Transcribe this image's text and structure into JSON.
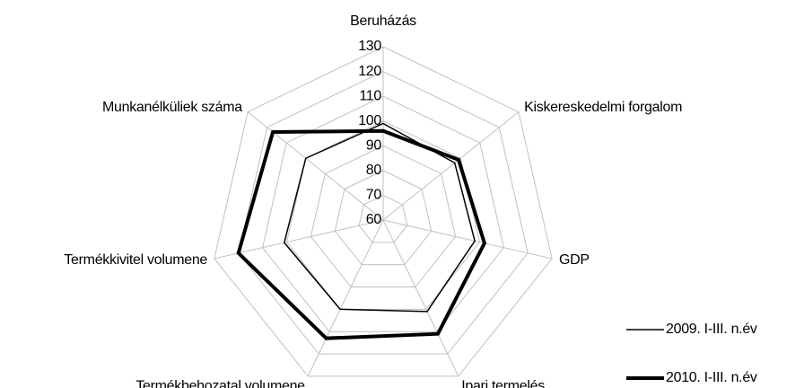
{
  "chart_data": {
    "type": "radar",
    "categories": [
      "Beruházás",
      "Kiskereskedelmi forgalom",
      "GDP",
      "Ipari termelés",
      "Termékbehozatal volumene",
      "Termékkivitel volumene",
      "Munkanélküliek száma"
    ],
    "series": [
      {
        "name": "2009. I-III. n.év",
        "color": "#000000",
        "width": 1.5,
        "values": [
          99,
          97,
          98,
          101,
          100,
          101,
          100
        ]
      },
      {
        "name": "2010. I-III. n.év",
        "color": "#000000",
        "width": 4,
        "values": [
          96,
          99,
          102,
          111,
          113,
          120,
          117
        ]
      }
    ],
    "ylim": [
      60,
      130
    ],
    "yticks": [
      60,
      70,
      80,
      90,
      100,
      110,
      120,
      130
    ],
    "grid": true,
    "grid_color": "#c0c0c0",
    "legend": "bottom-right"
  }
}
